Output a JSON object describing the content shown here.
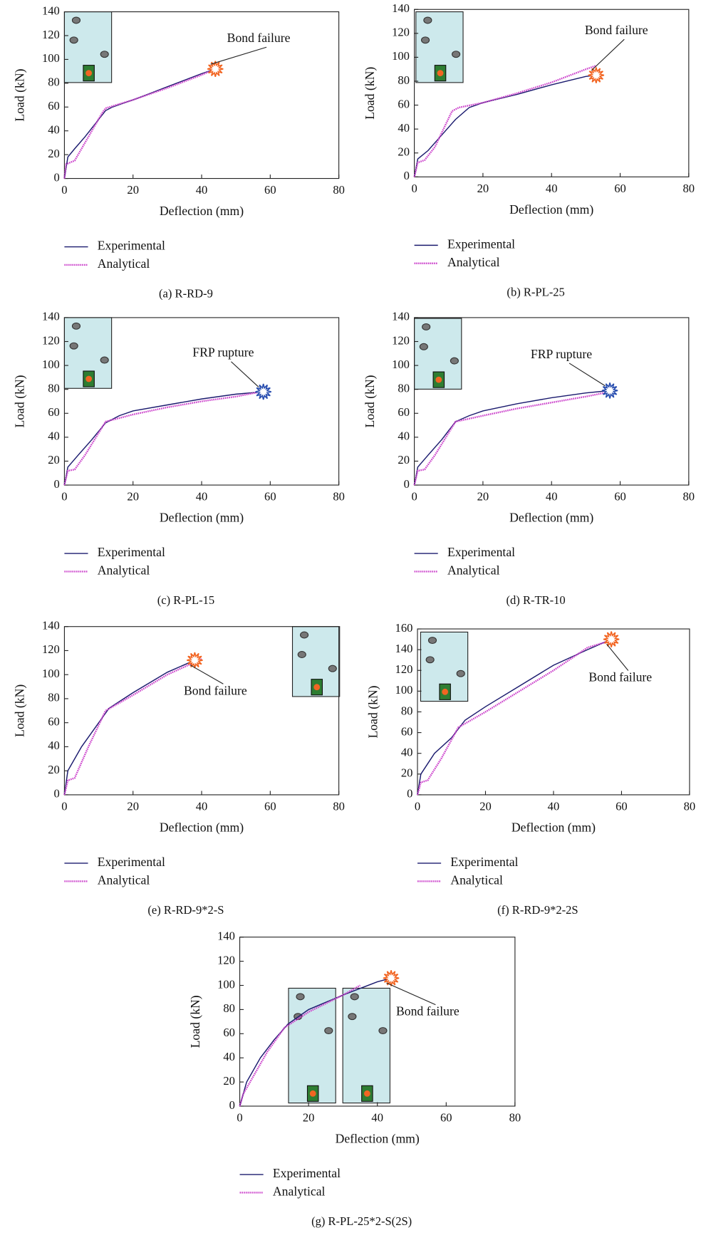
{
  "chart_data": [
    {
      "type": "line",
      "caption": "(a) R-RD-9",
      "x_label": "Deflection (mm)",
      "y_label": "Load (kN)",
      "annotation": "Bond failure",
      "xlim": [
        0,
        80
      ],
      "ylim": [
        0,
        140
      ],
      "xticks": [
        0,
        20,
        40,
        60,
        80
      ],
      "yticks": [
        0,
        20,
        40,
        60,
        80,
        100,
        120,
        140
      ],
      "series": [
        {
          "name": "Experimental",
          "color": "#1a1a6e",
          "x": [
            0,
            1,
            3,
            6,
            9,
            12,
            14,
            20,
            30,
            40,
            44
          ],
          "values": [
            0,
            18,
            25,
            35,
            46,
            57,
            60,
            66,
            77,
            88,
            92
          ]
        },
        {
          "name": "Analytical",
          "color": "#cc44cc",
          "x": [
            0,
            0.5,
            3,
            5,
            8,
            11,
            12,
            20,
            30,
            40,
            44
          ],
          "values": [
            0,
            12,
            15,
            25,
            40,
            55,
            59,
            66,
            76,
            87,
            92
          ]
        }
      ]
    },
    {
      "type": "line",
      "caption": "(b) R-PL-25",
      "x_label": "Deflection (mm)",
      "y_label": "Load (kN)",
      "annotation": "Bond failure",
      "xlim": [
        0,
        80
      ],
      "ylim": [
        0,
        140
      ],
      "xticks": [
        0,
        20,
        40,
        60,
        80
      ],
      "yticks": [
        0,
        20,
        40,
        60,
        80,
        100,
        120,
        140
      ],
      "series": [
        {
          "name": "Experimental",
          "color": "#1a1a6e",
          "x": [
            0,
            1,
            4,
            8,
            12,
            16,
            20,
            30,
            40,
            50,
            53
          ],
          "values": [
            0,
            15,
            22,
            35,
            48,
            58,
            62,
            69,
            77,
            84,
            85
          ]
        },
        {
          "name": "Analytical",
          "color": "#cc44cc",
          "x": [
            0,
            1,
            3,
            6,
            11,
            13,
            20,
            30,
            40,
            50,
            53
          ],
          "values": [
            0,
            12,
            14,
            25,
            55,
            58,
            62,
            70,
            79,
            90,
            93
          ]
        }
      ]
    },
    {
      "type": "line",
      "caption": "(c) R-PL-15",
      "x_label": "Deflection (mm)",
      "y_label": "Load (kN)",
      "annotation": "FRP rupture",
      "xlim": [
        0,
        80
      ],
      "ylim": [
        0,
        140
      ],
      "xticks": [
        0,
        20,
        40,
        60,
        80
      ],
      "yticks": [
        0,
        20,
        40,
        60,
        80,
        100,
        120,
        140
      ],
      "series": [
        {
          "name": "Experimental",
          "color": "#1a1a6e",
          "x": [
            0,
            1,
            4,
            8,
            12,
            16,
            20,
            30,
            40,
            50,
            58
          ],
          "values": [
            0,
            15,
            25,
            38,
            52,
            58,
            62,
            67,
            72,
            76,
            78
          ]
        },
        {
          "name": "Analytical",
          "color": "#cc44cc",
          "x": [
            0,
            1,
            3,
            6,
            12,
            20,
            30,
            40,
            50,
            59
          ],
          "values": [
            0,
            12,
            13,
            25,
            53,
            59,
            65,
            70,
            74,
            79
          ]
        }
      ]
    },
    {
      "type": "line",
      "caption": "(d) R-TR-10",
      "x_label": "Deflection (mm)",
      "y_label": "Load (kN)",
      "annotation": "FRP rupture",
      "xlim": [
        0,
        80
      ],
      "ylim": [
        0,
        140
      ],
      "xticks": [
        0,
        20,
        40,
        60,
        80
      ],
      "yticks": [
        0,
        20,
        40,
        60,
        80,
        100,
        120,
        140
      ],
      "series": [
        {
          "name": "Experimental",
          "color": "#1a1a6e",
          "x": [
            0,
            1,
            4,
            8,
            12,
            16,
            20,
            30,
            40,
            50,
            57
          ],
          "values": [
            0,
            15,
            25,
            38,
            53,
            58,
            62,
            68,
            73,
            77,
            79
          ]
        },
        {
          "name": "Analytical",
          "color": "#cc44cc",
          "x": [
            0,
            1,
            3,
            6,
            12,
            20,
            30,
            40,
            50,
            57
          ],
          "values": [
            0,
            12,
            13,
            25,
            53,
            58,
            64,
            69,
            74,
            78
          ]
        }
      ]
    },
    {
      "type": "line",
      "caption": "(e) R-RD-9*2-S",
      "x_label": "Deflection (mm)",
      "y_label": "Load (kN)",
      "annotation": "Bond failure",
      "xlim": [
        0,
        80
      ],
      "ylim": [
        0,
        140
      ],
      "xticks": [
        0,
        20,
        40,
        60,
        80
      ],
      "yticks": [
        0,
        20,
        40,
        60,
        80,
        100,
        120,
        140
      ],
      "series": [
        {
          "name": "Experimental",
          "color": "#1a1a6e",
          "x": [
            0,
            1,
            5,
            10,
            13,
            20,
            30,
            38
          ],
          "values": [
            0,
            20,
            40,
            60,
            72,
            85,
            102,
            112
          ]
        },
        {
          "name": "Analytical",
          "color": "#cc44cc",
          "x": [
            0,
            1,
            3,
            7,
            12,
            20,
            30,
            40
          ],
          "values": [
            0,
            12,
            14,
            40,
            70,
            83,
            100,
            113
          ]
        }
      ]
    },
    {
      "type": "line",
      "caption": "(f) R-RD-9*2-2S",
      "x_label": "Deflection (mm)",
      "y_label": "Load (kN)",
      "annotation": "Bond failure",
      "xlim": [
        0,
        80
      ],
      "ylim": [
        0,
        160
      ],
      "xticks": [
        0,
        20,
        40,
        60,
        80
      ],
      "yticks": [
        0,
        20,
        40,
        60,
        80,
        100,
        120,
        140,
        160
      ],
      "series": [
        {
          "name": "Experimental",
          "color": "#1a1a6e",
          "x": [
            0,
            1,
            5,
            10,
            14,
            20,
            30,
            40,
            50,
            57
          ],
          "values": [
            0,
            20,
            40,
            55,
            72,
            85,
            105,
            125,
            140,
            150
          ]
        },
        {
          "name": "Analytical",
          "color": "#cc44cc",
          "x": [
            0,
            1,
            3,
            7,
            12,
            20,
            30,
            40,
            50,
            58
          ],
          "values": [
            0,
            12,
            14,
            35,
            65,
            80,
            100,
            120,
            142,
            150
          ]
        }
      ]
    },
    {
      "type": "line",
      "caption": "(g) R-PL-25*2-S(2S)",
      "x_label": "Deflection (mm)",
      "y_label": "Load (kN)",
      "annotation": "Bond failure",
      "xlim": [
        0,
        80
      ],
      "ylim": [
        0,
        140
      ],
      "xticks": [
        0,
        20,
        40,
        60,
        80
      ],
      "yticks": [
        0,
        20,
        40,
        60,
        80,
        100,
        120,
        140
      ],
      "series": [
        {
          "name": "Experimental",
          "color": "#1a1a6e",
          "x": [
            0,
            2,
            6,
            10,
            14,
            20,
            30,
            40,
            44
          ],
          "values": [
            0,
            20,
            40,
            55,
            68,
            80,
            92,
            103,
            106
          ]
        },
        {
          "name": "Analytical",
          "color": "#cc44cc",
          "x": [
            0,
            1,
            3,
            8,
            13,
            20,
            30,
            35
          ],
          "values": [
            0,
            10,
            20,
            45,
            65,
            78,
            92,
            100
          ]
        }
      ]
    }
  ]
}
